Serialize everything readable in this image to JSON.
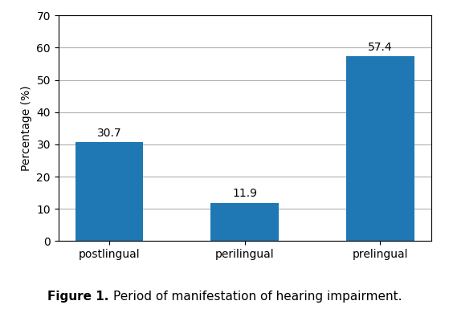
{
  "chart_data": {
    "type": "bar",
    "categories": [
      "postlingual",
      "perilingual",
      "prelingual"
    ],
    "values": [
      30.7,
      11.9,
      57.4
    ],
    "value_labels": [
      "30.7",
      "11.9",
      "57.4"
    ],
    "data_labels": true,
    "ylabel": "Percentage (%)",
    "ylim": [
      0,
      70
    ],
    "yticks": [
      0,
      10,
      20,
      30,
      40,
      50,
      60,
      70
    ],
    "grid": true,
    "annotations": [
      "Figure 1.",
      "Period of manifestation of hearing impairment."
    ]
  }
}
